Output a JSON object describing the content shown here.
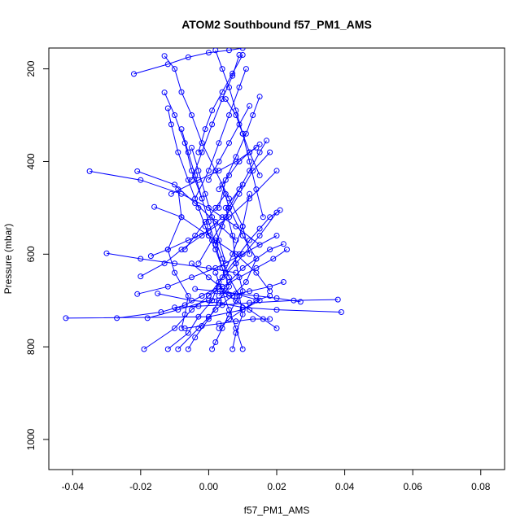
{
  "chart_data": {
    "type": "line",
    "title": "ATOM2 Southbound f57_PM1_AMS",
    "xlabel": "f57_PM1_AMS",
    "ylabel": "Pressure (mbar)",
    "xlim": [
      -0.047,
      0.087
    ],
    "ylim": [
      1065,
      155
    ],
    "y_inverted": true,
    "xticks": [
      -0.04,
      -0.02,
      0.0,
      0.02,
      0.04,
      0.06,
      0.08
    ],
    "xtick_labels": [
      "-0.04",
      "-0.02",
      "0.00",
      "0.02",
      "0.04",
      "0.06",
      "0.08"
    ],
    "yticks": [
      200,
      400,
      600,
      800,
      1000
    ],
    "ytick_labels": [
      "200",
      "400",
      "600",
      "800",
      "1000"
    ],
    "series_color": "#0000ff",
    "marker": "open-circle",
    "series": [
      {
        "x": [
          0.001,
          0.002,
          0.004,
          0.006,
          0.008,
          0.01,
          0.008,
          0.007,
          0.005,
          0.01
        ],
        "y": [
          805,
          790,
          760,
          730,
          700,
          680,
          620,
          560,
          500,
          450
        ]
      },
      {
        "x": [
          -0.019,
          -0.01,
          -0.005,
          0.0,
          0.004,
          0.007,
          0.01,
          0.012
        ],
        "y": [
          805,
          760,
          720,
          690,
          650,
          600,
          540,
          470
        ]
      },
      {
        "x": [
          -0.012,
          -0.006,
          -0.003,
          0.001,
          0.003,
          0.008,
          0.015,
          0.02
        ],
        "y": [
          805,
          770,
          735,
          700,
          660,
          620,
          560,
          510
        ]
      },
      {
        "x": [
          -0.009,
          -0.003,
          0.002,
          0.007,
          0.011,
          0.014,
          0.01,
          0.006,
          0.004
        ],
        "y": [
          805,
          760,
          720,
          690,
          660,
          610,
          560,
          500,
          450
        ]
      },
      {
        "x": [
          -0.006,
          -0.004,
          0.0,
          0.003,
          0.006,
          0.004,
          0.002,
          -0.001
        ],
        "y": [
          805,
          780,
          740,
          700,
          670,
          630,
          590,
          540
        ]
      },
      {
        "x": [
          -0.008,
          -0.007,
          -0.006,
          -0.01,
          -0.012,
          -0.008,
          -0.009
        ],
        "y": [
          760,
          730,
          690,
          640,
          590,
          520,
          460
        ]
      },
      {
        "x": [
          -0.042,
          0.0,
          0.01,
          0.015,
          0.005,
          0.0,
          -0.005
        ],
        "y": [
          738,
          735,
          720,
          700,
          680,
          650,
          620
        ]
      },
      {
        "x": [
          -0.027,
          -0.014,
          -0.007,
          -0.002,
          0.003
        ],
        "y": [
          738,
          725,
          710,
          690,
          670
        ]
      },
      {
        "x": [
          -0.018,
          -0.009,
          0.0,
          0.006,
          0.012,
          0.018,
          0.022
        ],
        "y": [
          738,
          720,
          700,
          690,
          680,
          670,
          660
        ]
      },
      {
        "x": [
          0.039,
          0.02,
          0.01,
          0.003,
          -0.005,
          -0.015
        ],
        "y": [
          725,
          720,
          715,
          705,
          700,
          685
        ]
      },
      {
        "x": [
          0.038,
          0.025,
          0.012,
          0.004,
          -0.003,
          -0.01
        ],
        "y": [
          698,
          700,
          705,
          710,
          712,
          715
        ]
      },
      {
        "x": [
          0.027,
          0.02,
          0.014,
          0.008,
          0.002,
          -0.004
        ],
        "y": [
          703,
          695,
          690,
          685,
          680,
          675
        ]
      },
      {
        "x": [
          -0.035,
          -0.02,
          -0.008,
          0.0,
          0.008,
          0.015
        ],
        "y": [
          421,
          440,
          470,
          500,
          540,
          580
        ]
      },
      {
        "x": [
          -0.03,
          -0.02,
          -0.01,
          0.0,
          0.008
        ],
        "y": [
          598,
          610,
          620,
          630,
          640
        ]
      },
      {
        "x": [
          -0.021,
          -0.012,
          -0.005,
          0.002,
          0.01,
          0.02
        ],
        "y": [
          686,
          670,
          650,
          630,
          600,
          560
        ]
      },
      {
        "x": [
          -0.02,
          -0.013,
          -0.008,
          -0.002,
          0.004
        ],
        "y": [
          648,
          620,
          590,
          560,
          520
        ]
      },
      {
        "x": [
          -0.017,
          -0.012,
          -0.006,
          0.0,
          0.006,
          0.012,
          0.02
        ],
        "y": [
          604,
          590,
          570,
          550,
          520,
          480,
          420
        ]
      },
      {
        "x": [
          -0.016,
          -0.008,
          0.0,
          0.008,
          0.014,
          0.018
        ],
        "y": [
          498,
          520,
          560,
          600,
          640,
          680
        ]
      },
      {
        "x": [
          -0.021,
          -0.01,
          -0.004,
          0.002,
          0.008
        ],
        "y": [
          421,
          450,
          490,
          530,
          570
        ]
      },
      {
        "x": [
          -0.022,
          -0.012,
          -0.006,
          0.0,
          0.006,
          0.01
        ],
        "y": [
          211,
          190,
          175,
          165,
          160,
          155
        ]
      },
      {
        "x": [
          -0.013,
          -0.01,
          -0.008,
          -0.005,
          -0.002,
          0.002,
          0.006,
          0.01,
          0.012
        ],
        "y": [
          172,
          200,
          250,
          300,
          360,
          420,
          480,
          540,
          600
        ]
      },
      {
        "x": [
          -0.012,
          -0.011,
          -0.009,
          -0.006,
          -0.003,
          0.0
        ],
        "y": [
          285,
          320,
          380,
          440,
          500,
          560
        ]
      },
      {
        "x": [
          -0.013,
          -0.01,
          -0.007,
          -0.005,
          -0.002
        ],
        "y": [
          251,
          300,
          360,
          420,
          480
        ]
      },
      {
        "x": [
          -0.008,
          -0.006,
          -0.004,
          -0.002,
          0.0,
          0.002,
          0.004
        ],
        "y": [
          330,
          380,
          430,
          480,
          530,
          580,
          630
        ]
      },
      {
        "x": [
          -0.005,
          -0.003,
          -0.001,
          0.001,
          0.003,
          0.005
        ],
        "y": [
          370,
          420,
          470,
          520,
          570,
          620
        ]
      },
      {
        "x": [
          0.002,
          0.004,
          0.006,
          0.008,
          0.01,
          0.012,
          0.014,
          0.016
        ],
        "y": [
          160,
          200,
          240,
          290,
          340,
          400,
          460,
          520
        ]
      },
      {
        "x": [
          0.015,
          0.013,
          0.011,
          0.008,
          0.005,
          0.003
        ],
        "y": [
          260,
          300,
          340,
          390,
          440,
          500
        ]
      },
      {
        "x": [
          0.017,
          0.015,
          0.012,
          0.009,
          0.006,
          0.004,
          0.002
        ],
        "y": [
          355,
          380,
          420,
          460,
          500,
          540,
          580
        ]
      },
      {
        "x": [
          0.021,
          0.018,
          0.015,
          0.012,
          0.009,
          0.005
        ],
        "y": [
          505,
          520,
          545,
          570,
          600,
          640
        ]
      },
      {
        "x": [
          0.022,
          0.018,
          0.014,
          0.01,
          0.006,
          0.003
        ],
        "y": [
          578,
          590,
          610,
          630,
          660,
          690
        ]
      },
      {
        "x": [
          0.023,
          0.019,
          0.014,
          0.009,
          0.004,
          0.0
        ],
        "y": [
          590,
          610,
          630,
          650,
          670,
          690
        ]
      },
      {
        "x": [
          0.018,
          0.013,
          0.009,
          0.005,
          0.001,
          -0.003
        ],
        "y": [
          380,
          420,
          470,
          520,
          570,
          620
        ]
      },
      {
        "x": [
          0.011,
          0.009,
          0.006,
          0.003,
          0.0,
          -0.004
        ],
        "y": [
          200,
          240,
          300,
          360,
          420,
          480
        ]
      },
      {
        "x": [
          0.009,
          0.007,
          0.004,
          0.001,
          -0.002,
          -0.005
        ],
        "y": [
          170,
          215,
          265,
          320,
          380,
          440
        ]
      },
      {
        "x": [
          0.015,
          0.012,
          0.009,
          0.006,
          0.003
        ],
        "y": [
          363,
          380,
          400,
          430,
          460
        ]
      },
      {
        "x": [
          -0.011,
          -0.003,
          0.003,
          0.008,
          0.014
        ],
        "y": [
          470,
          440,
          420,
          400,
          370
        ]
      },
      {
        "x": [
          0.005,
          0.008,
          0.01,
          0.012,
          0.015
        ],
        "y": [
          265,
          300,
          340,
          380,
          430
        ]
      },
      {
        "x": [
          -0.003,
          -0.001,
          0.001,
          0.004,
          0.007,
          0.01
        ],
        "y": [
          380,
          330,
          290,
          250,
          210,
          170
        ]
      },
      {
        "x": [
          0.0,
          0.003,
          0.006,
          0.009,
          0.012
        ],
        "y": [
          440,
          400,
          360,
          320,
          280
        ]
      },
      {
        "x": [
          -0.007,
          -0.004,
          -0.001,
          0.002,
          0.005
        ],
        "y": [
          590,
          560,
          530,
          500,
          470
        ]
      },
      {
        "x": [
          0.003,
          0.006,
          0.01,
          0.014,
          0.018
        ],
        "y": [
          760,
          740,
          720,
          700,
          690
        ]
      },
      {
        "x": [
          -0.007,
          -0.002,
          0.003,
          0.008,
          0.013,
          0.018
        ],
        "y": [
          760,
          755,
          750,
          745,
          740,
          740
        ]
      },
      {
        "x": [
          0.007,
          0.008,
          0.01,
          0.009,
          0.006,
          0.004,
          0.002
        ],
        "y": [
          805,
          770,
          730,
          690,
          650,
          610,
          570
        ]
      },
      {
        "x": [
          0.01,
          0.008,
          0.006,
          0.004,
          0.002
        ],
        "y": [
          805,
          760,
          720,
          680,
          640
        ]
      },
      {
        "x": [
          0.02,
          0.016,
          0.012,
          0.008,
          0.004
        ],
        "y": [
          760,
          740,
          720,
          700,
          680
        ]
      }
    ]
  }
}
